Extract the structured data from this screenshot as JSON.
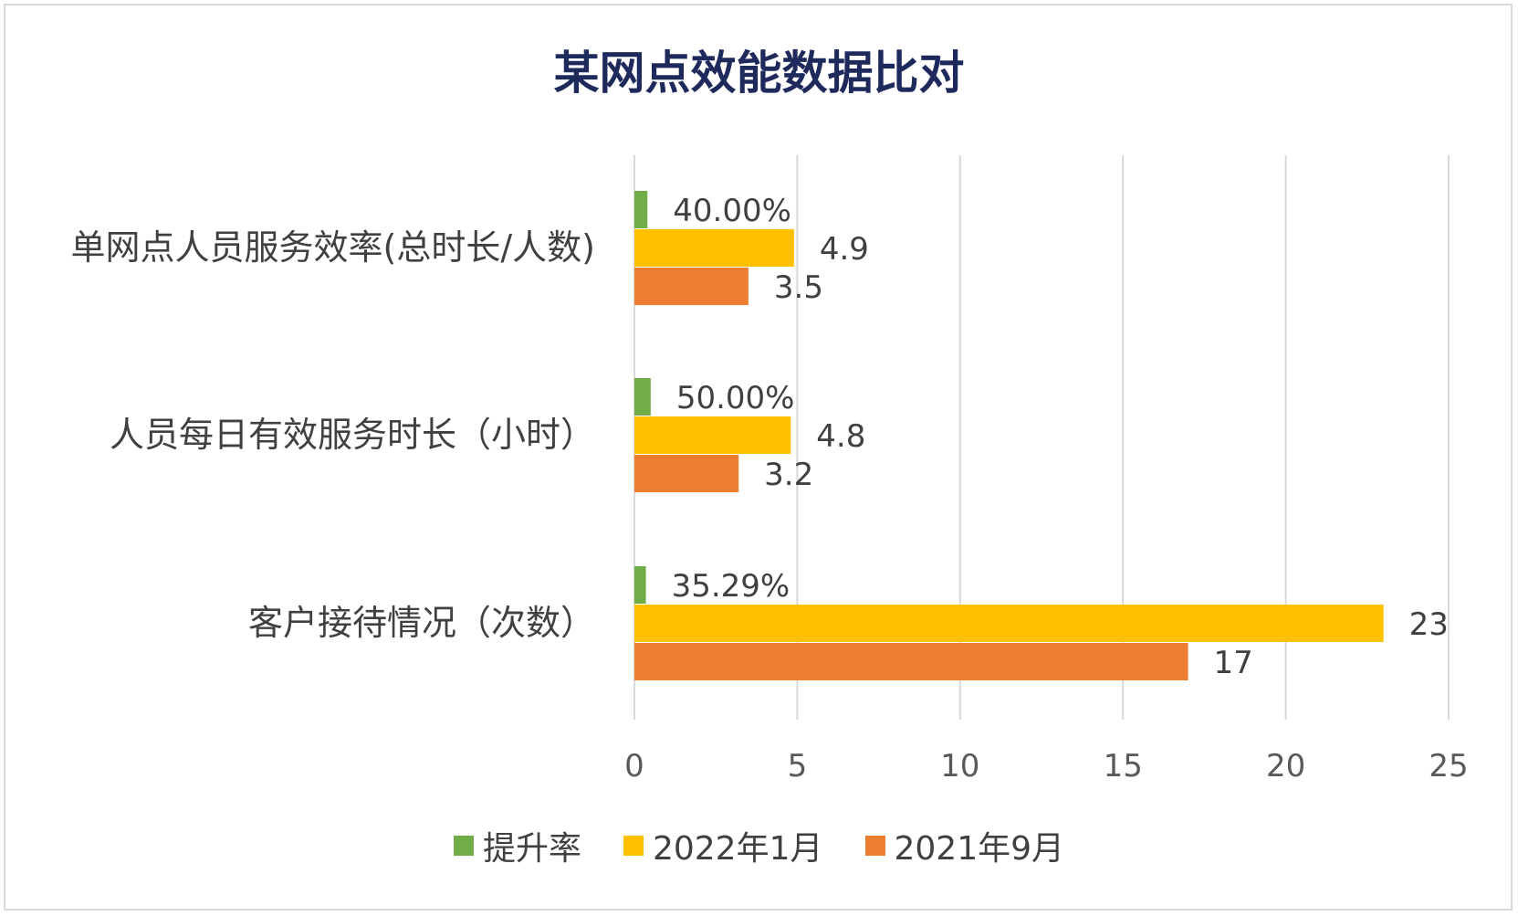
{
  "chart_data": {
    "type": "bar",
    "orientation": "horizontal",
    "title": "某网点效能数据比对",
    "categories": [
      "单网点人员服务效率(总时长/人数)",
      "人员每日有效服务时长（小时）",
      "客户接待情况（次数）"
    ],
    "series": [
      {
        "name": "提升率",
        "color": "#70ad47",
        "values": [
          0.4,
          0.5,
          0.3529
        ],
        "labels": [
          "40.00%",
          "50.00%",
          "35.29%"
        ]
      },
      {
        "name": "2022年1月",
        "color": "#ffc000",
        "values": [
          4.9,
          4.8,
          23
        ],
        "labels": [
          "4.9",
          "4.8",
          "23"
        ]
      },
      {
        "name": "2021年9月",
        "color": "#ed7d31",
        "values": [
          3.5,
          3.2,
          17
        ],
        "labels": [
          "3.5",
          "3.2",
          "17"
        ]
      }
    ],
    "xlim": [
      0,
      25
    ],
    "xticks": [
      "0",
      "5",
      "10",
      "15",
      "20",
      "25"
    ],
    "grid": "vertical",
    "legend": "bottom"
  }
}
